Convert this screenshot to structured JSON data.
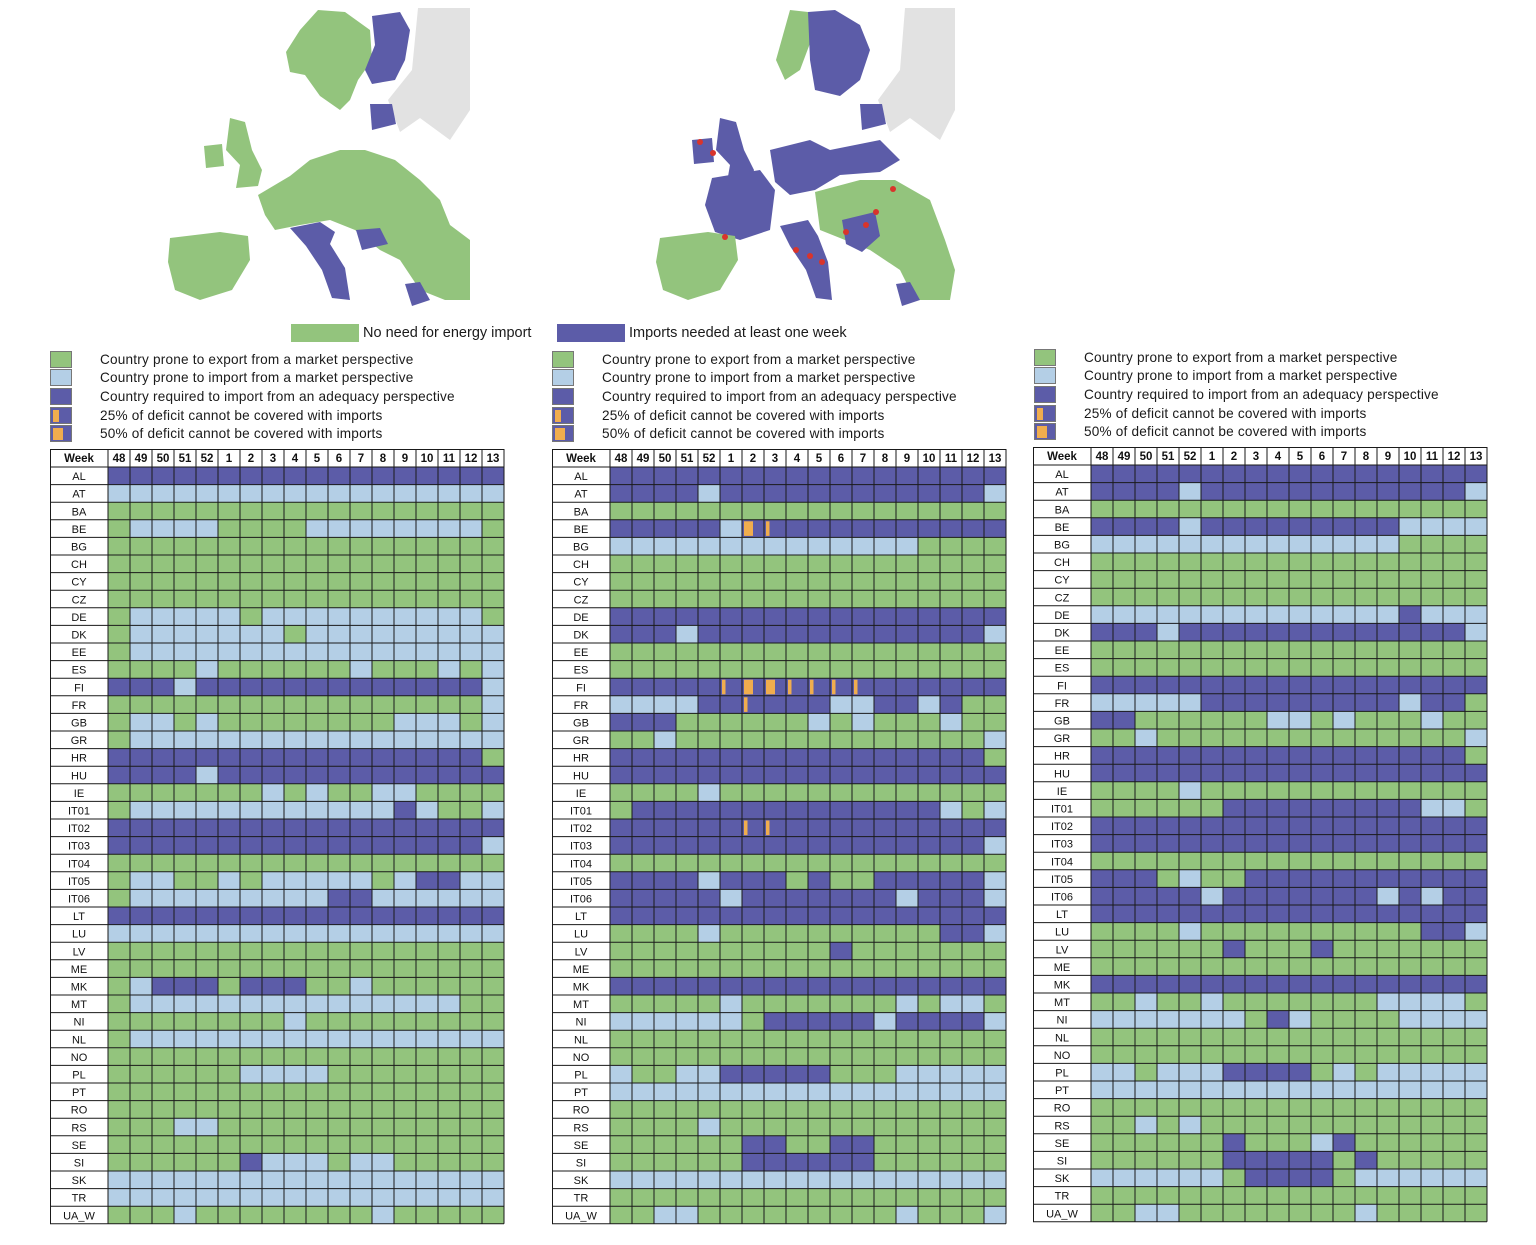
{
  "colors": {
    "export": "#93c47d",
    "import": "#b4cfe6",
    "adequacy": "#5c5ca8",
    "deficit": "#f0ad4e",
    "land_other": "#e2e2e2",
    "grid": "#1a1a1a"
  },
  "map_legend": {
    "no_import_label": "No need for energy import",
    "imports_needed_label": "Imports needed at least one week"
  },
  "panel_legend": [
    {
      "key": "export",
      "label": "Country prone to export from a market perspective"
    },
    {
      "key": "import",
      "label": "Country prone to import from a market perspective"
    },
    {
      "key": "adequacy",
      "label": "Country required to import from an adequacy perspective"
    },
    {
      "key": "d25",
      "label": "25% of deficit cannot be covered with imports"
    },
    {
      "key": "d50",
      "label": "50% of deficit cannot be covered with imports"
    }
  ],
  "chart_data": [
    {
      "type": "heatmap",
      "corner_label": "Week",
      "weeks": [
        "48",
        "49",
        "50",
        "51",
        "52",
        "1",
        "2",
        "3",
        "4",
        "5",
        "6",
        "7",
        "8",
        "9",
        "10",
        "11",
        "12",
        "13"
      ],
      "countries": [
        "AL",
        "AT",
        "BA",
        "BE",
        "BG",
        "CH",
        "CY",
        "CZ",
        "DE",
        "DK",
        "EE",
        "ES",
        "FI",
        "FR",
        "GB",
        "GR",
        "HR",
        "HU",
        "IE",
        "IT01",
        "IT02",
        "IT03",
        "IT04",
        "IT05",
        "IT06",
        "LT",
        "LU",
        "LV",
        "ME",
        "MK",
        "MT",
        "NI",
        "NL",
        "NO",
        "PL",
        "PT",
        "RO",
        "RS",
        "SE",
        "SI",
        "SK",
        "TR",
        "UA_W"
      ],
      "legend_codes": {
        "G": "export",
        "L": "import",
        "D": "adequacy"
      },
      "rows": [
        "DDDDDDDDDDDDDDDDDD",
        "LLLLLLLLLLLLLLLLLL",
        "GGGGGGGGGGGGGGGGGG",
        "GLLLLGGGGLLLLLLLLG",
        "GGGGGGGGGGGGGGGGGG",
        "GGGGGGGGGGGGGGGGGG",
        "GGGGGGGGGGGGGGGGGG",
        "GGGGGGGGGGGGGGGGGG",
        "GLLLLLGLLLLLLLLLLG",
        "GLLLLLLLGLLLLLLLLL",
        "GLLLLLLLLLLLLLLLLL",
        "GGGGLGGGGGGLGGGLGL",
        "DDDLDDDDDDDDDDDDDL",
        "GGGGGGGGGGGGGGGGGL",
        "GLLGLGGGGGGGGLLLGL",
        "GLLLLLLLLLLLLLLLLL",
        "DDDDDDDDDDDDDDDDDG",
        "DDDDLDDDDDDDDDDDDD",
        "GGGGGGGLGLGGLLGGGG",
        "GLLLLLLLLLLLLDLGGL",
        "DDDDDDDDDDDDDDDDDD",
        "DDDDDDDDDDDDDDDDDL",
        "GGGGGGGGGGGGGGGGGG",
        "GLLGGLGLLLLLGLDDLL",
        "GLLLLLLLLLDDLLLLLL",
        "DDDDDDDDDDDDDDDDDD",
        "LLLLLLLLLLLLLLLLLL",
        "GGGGGGGGGGGGGGGGGG",
        "GGGGGGGGGGGGGGGGGG",
        "GLDDDGDDDGGLGGGGGG",
        "GLLLLLLLLLLLLLLLGG",
        "GGGGGGGGLGGGGGGGGG",
        "GLLLLLLLLLLLLLLLLL",
        "GGGGGGGGGGGGGGGGGG",
        "GGGGGGLLLLGGGGGGGG",
        "GGGGGGGGGGGGGGGGGG",
        "GGGGGGGGGGGGGGGGGG",
        "GGGLLGGGGGGGGGGGGG",
        "GGGGGGGGGGGGGGGGGG",
        "GGGGGGDLLLGLLGGGGG",
        "LLLLLLLLLLLLLLLLLL",
        "LLLLLLLLLLLLLLLLLL",
        "GGGLGGGGGGGGLGGGGG"
      ],
      "deficits": []
    },
    {
      "type": "heatmap",
      "corner_label": "Week",
      "weeks": [
        "48",
        "49",
        "50",
        "51",
        "52",
        "1",
        "2",
        "3",
        "4",
        "5",
        "6",
        "7",
        "8",
        "9",
        "10",
        "11",
        "12",
        "13"
      ],
      "countries": [
        "AL",
        "AT",
        "BA",
        "BE",
        "BG",
        "CH",
        "CY",
        "CZ",
        "DE",
        "DK",
        "EE",
        "ES",
        "FI",
        "FR",
        "GB",
        "GR",
        "HR",
        "HU",
        "IE",
        "IT01",
        "IT02",
        "IT03",
        "IT04",
        "IT05",
        "IT06",
        "LT",
        "LU",
        "LV",
        "ME",
        "MK",
        "MT",
        "NI",
        "NL",
        "NO",
        "PL",
        "PT",
        "RO",
        "RS",
        "SE",
        "SI",
        "SK",
        "TR",
        "UA_W"
      ],
      "legend_codes": {
        "G": "export",
        "L": "import",
        "D": "adequacy"
      },
      "rows": [
        "DDDDDDDDDDDDDDDDDD",
        "DDDDLDDDDDDDDDDDDL",
        "GGGGGGGGGGGGGGGGGG",
        "DDDDDLDDDDDDDDDDDD",
        "LLLLLLLLLLLLLLGGGG",
        "GGGGGGGGGGGGGGGGGG",
        "GGGGGGGGGGGGGGGGGG",
        "GGGGGGGGGGGGGGGGGG",
        "DDDDDDDDDDDDDDDDDD",
        "DDDLDDDDDDDDDDDDDL",
        "GGGGGGGGGGGGGGGGGG",
        "GGGGGGGGGGGGGGGGGG",
        "DDDDDDDDDDDDDDDDDD",
        "LLLLDDDDDDLLDDLDGG",
        "DDDGGGGGGLGLGGGLGG",
        "GGLGGGGGGGGGGGGGGL",
        "DDDDDDDDDDDDDDDDDG",
        "DDDDDDDDDDDDDDDDDD",
        "GGGGLGGGGGGGGGGGGG",
        "GDDDDDDDDDDDDDDLGL",
        "DDDDDDDDDDDDDDDDDD",
        "DDDDDDDDDDDDDDDDDL",
        "GGGGGGGGGGGGGGGGGG",
        "DDDDLDDDGDGGDDDDDL",
        "DDDDDLDDDDDDDLDDDL",
        "DDDDDDDDDDDDDDDDDD",
        "GGGGLGGGGGGGGGGDDL",
        "GGGGGGGGGGDGGGGGGG",
        "GGGGGGGGGGGGGGGGGG",
        "DDDDDDDDDDDDDDDDDD",
        "GGGGGLGGGGGGGLGLLG",
        "LLLLLLGDDDDDLDDDDL",
        "GGGGGGGGGGGGGGGGGG",
        "GGGGGGGGGGGGGGGGGG",
        "LGGLLDDDDDGGGLLLLL",
        "LLLLLLLLLLLLLLLLLL",
        "GGGGGGGGGGGGGGGGGG",
        "GGGGLGGGGGGGGGGGGG",
        "GGGGGGDDGGDDGGGGGG",
        "GGGGGGDDDDDDGGGGGG",
        "LLLLLLLLLLLLLLLLLL",
        "GGGGGGGGGGGGGGGGGG",
        "GGLLGGGGGGGGGLGGGL"
      ],
      "deficits": [
        {
          "country": "BE",
          "week": "2",
          "level": 50
        },
        {
          "country": "BE",
          "week": "3",
          "level": 25
        },
        {
          "country": "FI",
          "week": "1",
          "level": 25
        },
        {
          "country": "FI",
          "week": "2",
          "level": 50
        },
        {
          "country": "FI",
          "week": "3",
          "level": 50
        },
        {
          "country": "FI",
          "week": "4",
          "level": 25
        },
        {
          "country": "FI",
          "week": "5",
          "level": 25
        },
        {
          "country": "FI",
          "week": "6",
          "level": 25
        },
        {
          "country": "FI",
          "week": "7",
          "level": 25
        },
        {
          "country": "FR",
          "week": "2",
          "level": 25
        },
        {
          "country": "IT02",
          "week": "2",
          "level": 25
        },
        {
          "country": "IT02",
          "week": "3",
          "level": 25
        }
      ]
    },
    {
      "type": "heatmap",
      "corner_label": "Week",
      "weeks": [
        "48",
        "49",
        "50",
        "51",
        "52",
        "1",
        "2",
        "3",
        "4",
        "5",
        "6",
        "7",
        "8",
        "9",
        "10",
        "11",
        "12",
        "13"
      ],
      "countries": [
        "AL",
        "AT",
        "BA",
        "BE",
        "BG",
        "CH",
        "CY",
        "CZ",
        "DE",
        "DK",
        "EE",
        "ES",
        "FI",
        "FR",
        "GB",
        "GR",
        "HR",
        "HU",
        "IE",
        "IT01",
        "IT02",
        "IT03",
        "IT04",
        "IT05",
        "IT06",
        "LT",
        "LU",
        "LV",
        "ME",
        "MK",
        "MT",
        "NI",
        "NL",
        "NO",
        "PL",
        "PT",
        "RO",
        "RS",
        "SE",
        "SI",
        "SK",
        "TR",
        "UA_W"
      ],
      "legend_codes": {
        "G": "export",
        "L": "import",
        "D": "adequacy"
      },
      "rows": [
        "DDDDDDDDDDDDDDDDDD",
        "DDDDLDDDDDDDDDDDDL",
        "GGGGGGGGGGGGGGGGGG",
        "DDDDLDDDDDDDDDLLLL",
        "LLLLLLLLLLLLLLGGGG",
        "GGGGGGGGGGGGGGGGGG",
        "GGGGGGGGGGGGGGGGGG",
        "GGGGGGGGGGGGGGGGGG",
        "LLLLLLLLLLLLLLDLLL",
        "DDDLDDDDDDDDDDDDDL",
        "GGGGGGGGGGGGGGGGGG",
        "GGGGGGGGGGGGGGGGGG",
        "DDDDDDDDDDDDDDDDDD",
        "LLLLLDDDDDDDDDLDDG",
        "DDGGGGGGLLGLGGGLGG",
        "GGLGGGGGGGGGGGGGGL",
        "DDDDDDDDDDDDDDDDDG",
        "DDDDDDDDDDDDDDDDDD",
        "GGGGLGGGGGGGGGGGGG",
        "GGGGGGDDDDDDDDDLLG",
        "DDDDDDDDDDDDDDDDDD",
        "DDDDDDDDDDDDDDDDDD",
        "GGGGGGGGGGGGGGGGGG",
        "DDDGLGGDDDDDDDDDDD",
        "DDDDDLDDDDDDDLDLDD",
        "DDDDDDDDDDDDDDDDDD",
        "GGGGLGGGGGGGGGGDDL",
        "GGGGGGDGGGDGGGGGGG",
        "GGGGGGGGGGGGGGGGGG",
        "DDDDDDDDDDDDDDDDDD",
        "GGLGGLGGGGGGGLLLLG",
        "LLLLLLLGDLGGGGLLLL",
        "GGGGGGGGGGGGGGGGGG",
        "GGGGGGGGGGGGGGGGGG",
        "LLGLLLDDDDGLGLLLLL",
        "LLLLLLLLLLLLLLLLLL",
        "GGGGGGGGGGGGGGGGGG",
        "GGLGLGGGGGGGGGGGGG",
        "GGGGGGDGGGLDGGGGGG",
        "GGGGGGDDDDDGDGGGGG",
        "LLLLLLGDDDDGLLLLLL",
        "GGGGGGGGGGGGGGGGGG",
        "GGLLGGGGGGGGLGGGGG"
      ],
      "deficits": []
    }
  ]
}
